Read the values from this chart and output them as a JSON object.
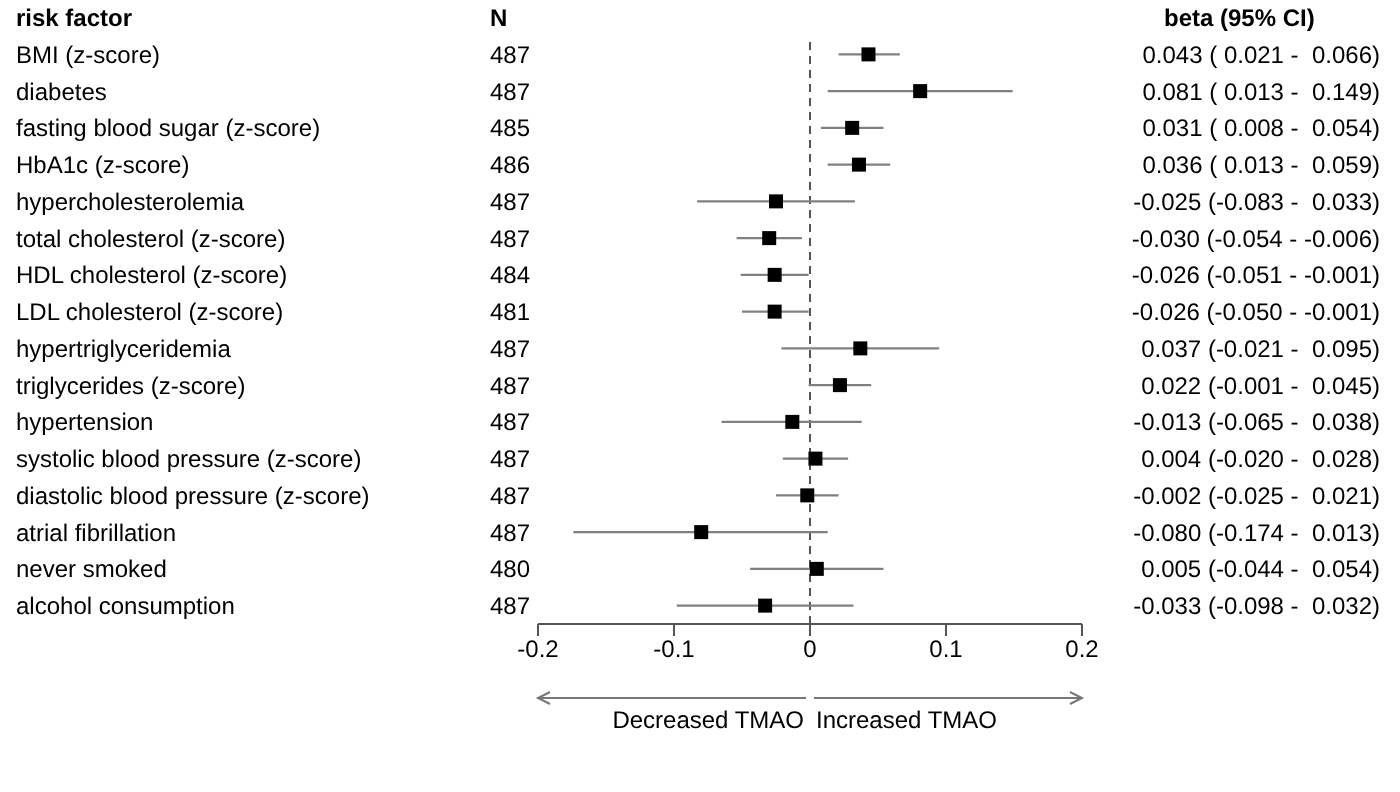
{
  "chart_data": {
    "type": "scatter",
    "orientation": "horizontal",
    "ylabel": "risk factor",
    "categories": [
      "BMI (z-score)",
      "diabetes",
      "fasting blood sugar (z-score)",
      "HbA1c (z-score)",
      "hypercholesterolemia",
      "total cholesterol (z-score)",
      "HDL cholesterol (z-score)",
      "LDL cholesterol (z-score)",
      "hypertriglyceridemia",
      "triglycerides (z-score)",
      "hypertension",
      "systolic blood pressure (z-score)",
      "diastolic blood pressure (z-score)",
      "atrial fibrillation",
      "never smoked",
      "alcohol consumption"
    ],
    "values": [
      0.043,
      0.081,
      0.031,
      0.036,
      -0.025,
      -0.03,
      -0.026,
      -0.026,
      0.037,
      0.022,
      -0.013,
      0.004,
      -0.002,
      -0.08,
      0.005,
      -0.033
    ],
    "errors": [
      [
        0.021,
        0.066
      ],
      [
        0.013,
        0.149
      ],
      [
        0.008,
        0.054
      ],
      [
        0.013,
        0.059
      ],
      [
        -0.083,
        0.033
      ],
      [
        -0.054,
        -0.006
      ],
      [
        -0.051,
        -0.001
      ],
      [
        -0.05,
        -0.001
      ],
      [
        -0.021,
        0.095
      ],
      [
        -0.001,
        0.045
      ],
      [
        -0.065,
        0.038
      ],
      [
        -0.02,
        0.028
      ],
      [
        -0.025,
        0.021
      ],
      [
        -0.174,
        0.013
      ],
      [
        -0.044,
        0.054
      ],
      [
        -0.098,
        0.032
      ]
    ],
    "value_labels": [
      "0.043 ( 0.021 -  0.066)",
      "0.081 ( 0.013 -  0.149)",
      "0.031 ( 0.008 -  0.054)",
      "0.036 ( 0.013 -  0.059)",
      "-0.025 (-0.083 -  0.033)",
      "-0.030 (-0.054 - -0.006)",
      "-0.026 (-0.051 - -0.001)",
      "-0.026 (-0.050 - -0.001)",
      "0.037 (-0.021 -  0.095)",
      "0.022 (-0.001 -  0.045)",
      "-0.013 (-0.065 -  0.038)",
      "0.004 (-0.020 -  0.028)",
      "-0.002 (-0.025 -  0.021)",
      "-0.080 (-0.174 -  0.013)",
      "0.005 (-0.044 -  0.054)",
      "-0.033 (-0.098 -  0.032)"
    ],
    "color": "#000000",
    "marker": "square",
    "xlim": [
      -0.2,
      0.2
    ],
    "xticks": [
      -0.2,
      -0.1,
      0,
      0.1,
      0.2
    ],
    "grid": false,
    "legend": false,
    "ref_lines": [
      {
        "axis": "x",
        "value": 0,
        "line_style": "dashed",
        "color": "#555555"
      }
    ],
    "annotations": [
      "N",
      "beta (95% CI)",
      "Decreased TMAO",
      "Increased TMAO",
      "487",
      "487",
      "485",
      "486",
      "487",
      "487",
      "484",
      "481",
      "487",
      "487",
      "487",
      "487",
      "487",
      "487",
      "480",
      "487"
    ]
  }
}
